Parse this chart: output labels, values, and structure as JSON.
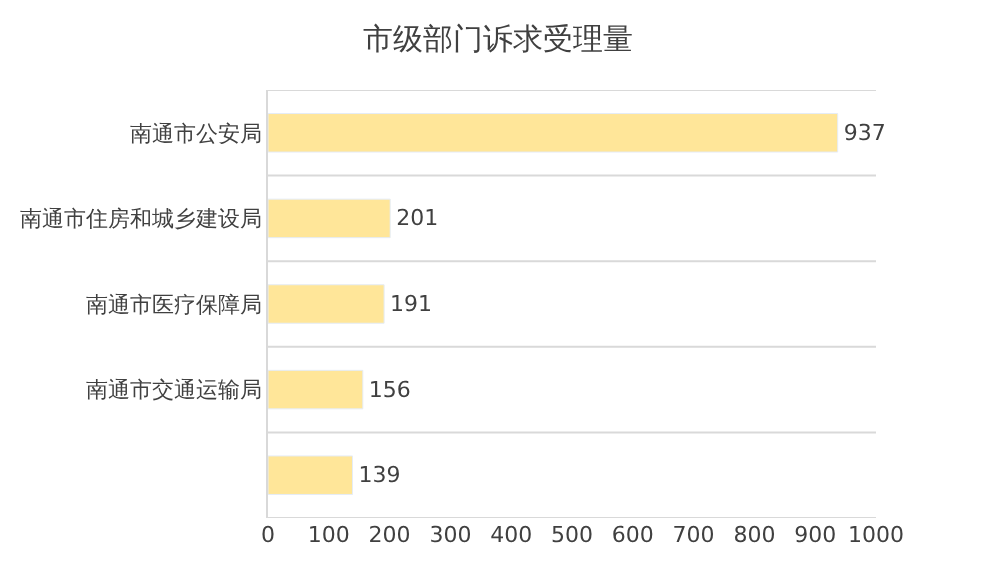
{
  "chart_data": {
    "type": "bar",
    "orientation": "horizontal",
    "title": "市级部门诉求受理量",
    "categories": [
      "南通市公安局",
      "南通市住房和城乡建设局",
      "南通市医疗保障局",
      "南通市交通运输局",
      null
    ],
    "values": [
      937,
      201,
      191,
      156,
      139
    ],
    "color": "#ffe699",
    "xlim": [
      0,
      1000
    ],
    "xticks": [
      0,
      100,
      200,
      300,
      400,
      500,
      600,
      700,
      800,
      900,
      1000
    ],
    "grid": "y",
    "data_labels": true
  }
}
